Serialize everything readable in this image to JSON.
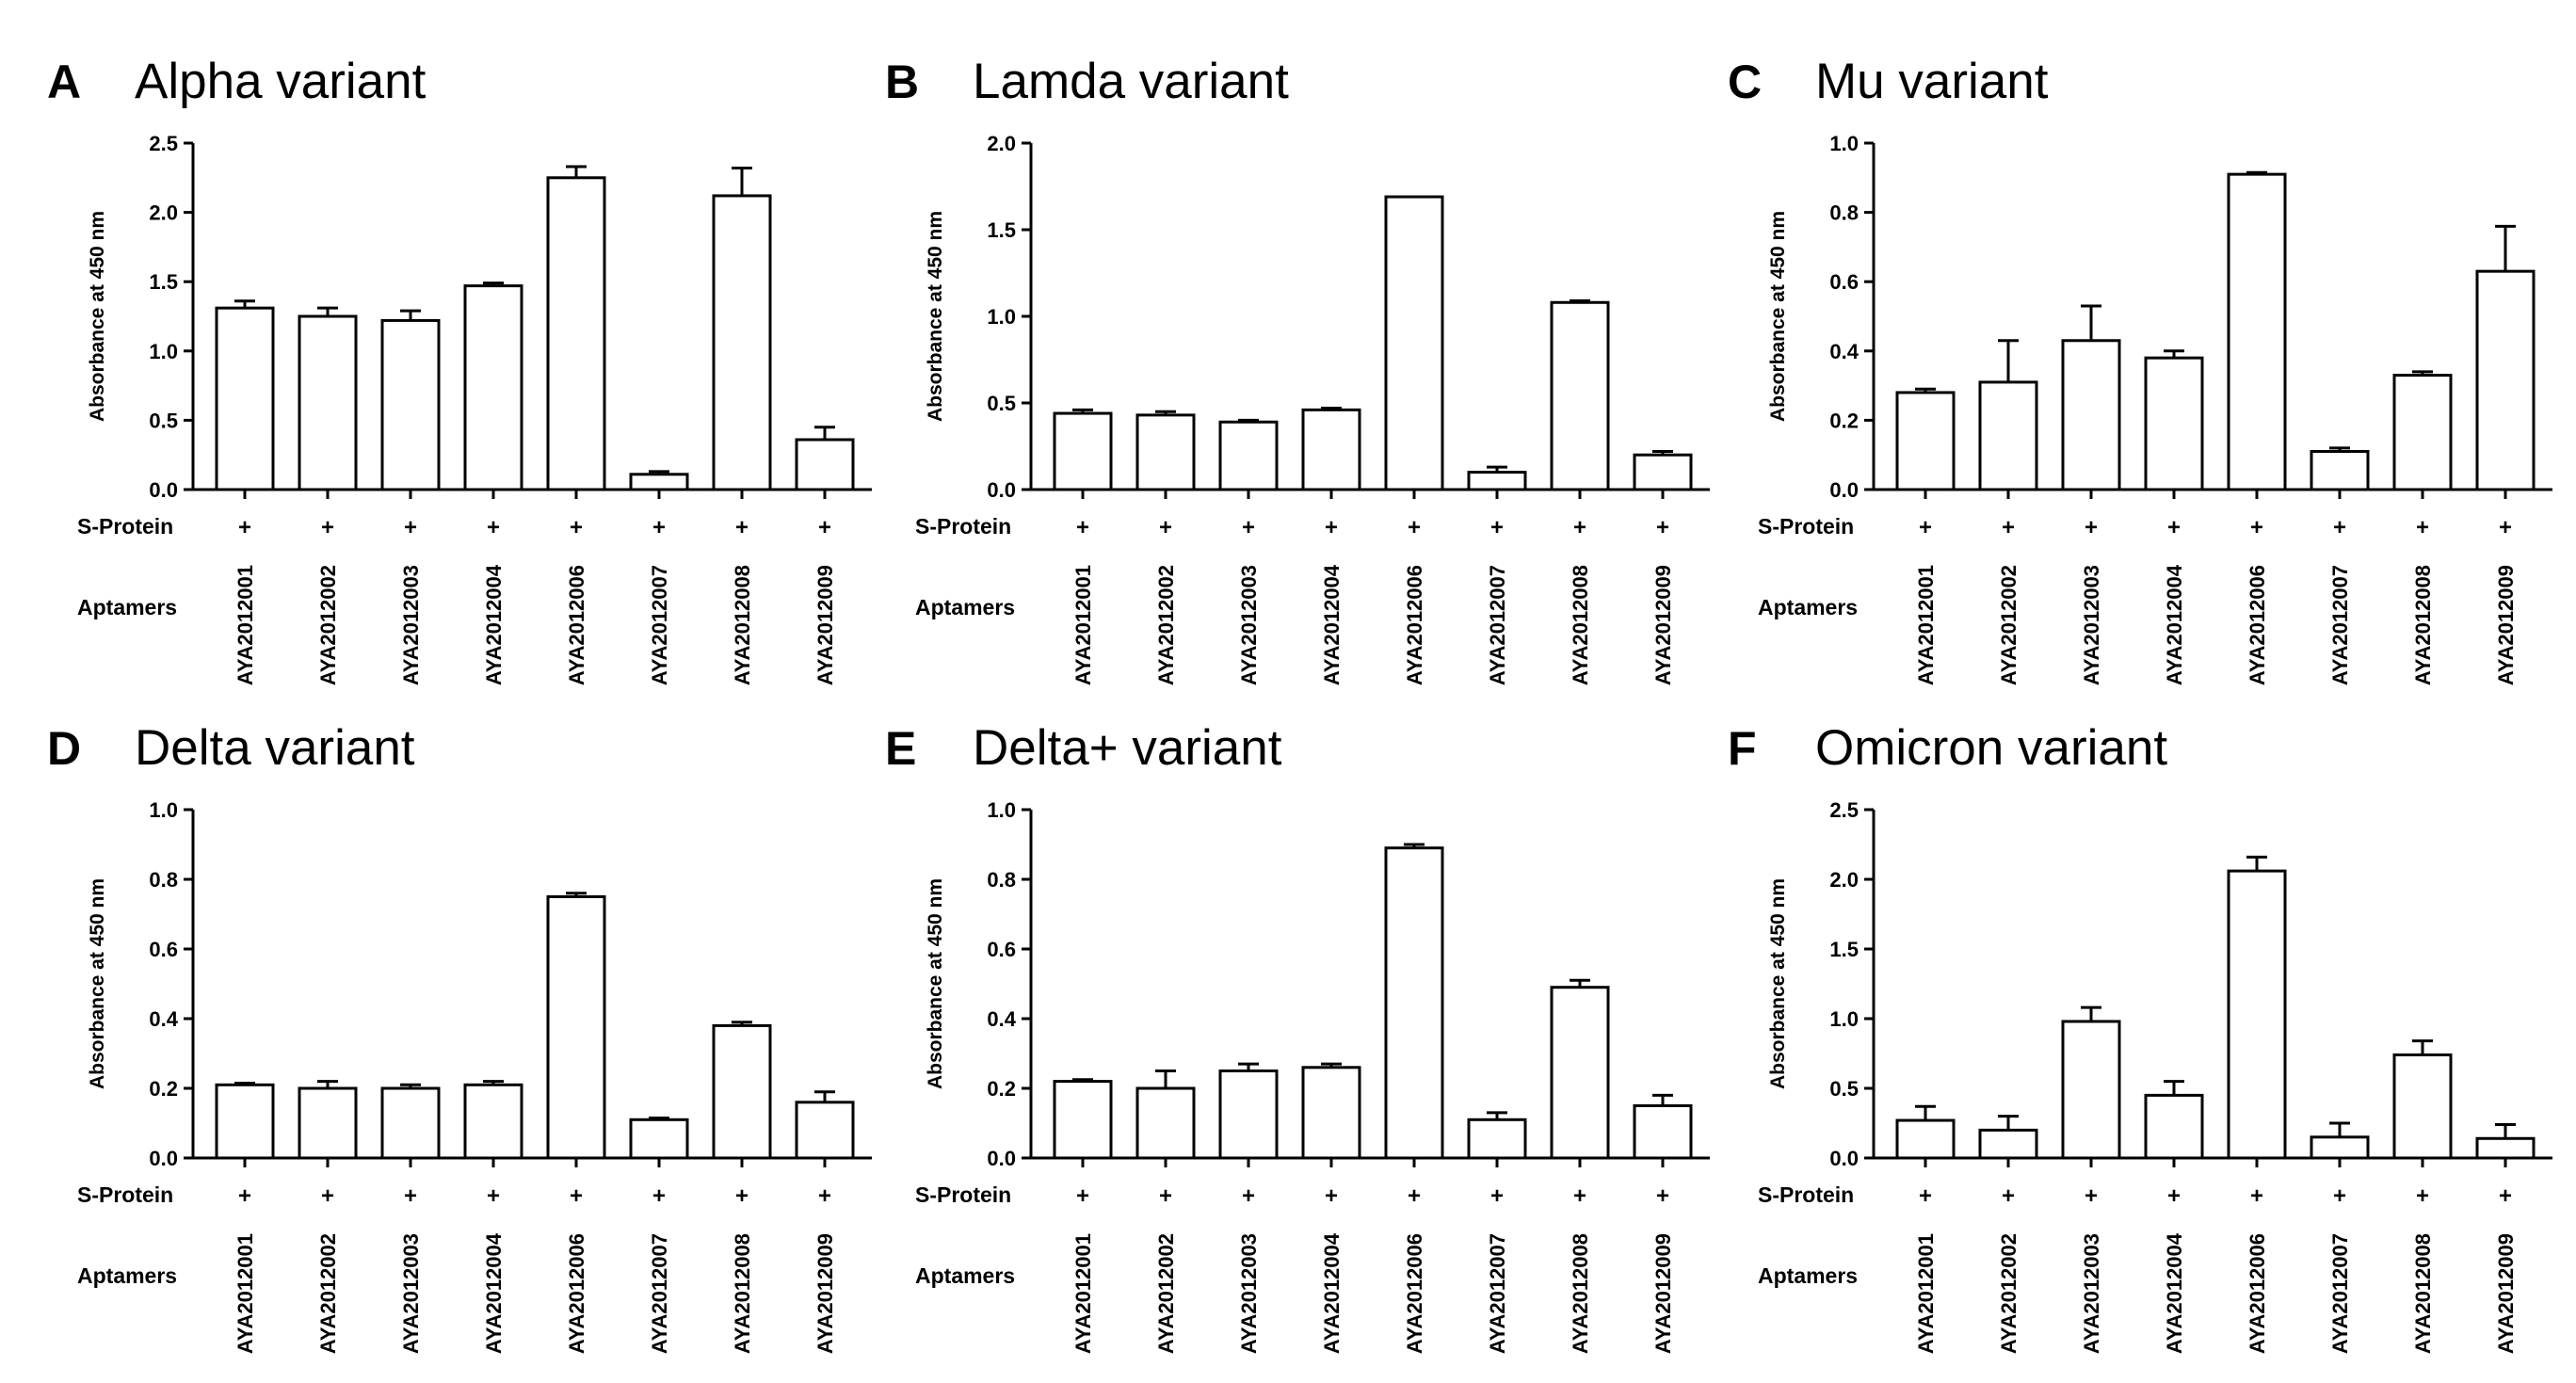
{
  "chart_data": [
    {
      "type": "bar",
      "panel": "A",
      "title": "Alpha variant",
      "ylabel": "Absorbance at 450 nm",
      "ylim": [
        0,
        2.5
      ],
      "yticks": [
        "0.0",
        "0.5",
        "1.0",
        "1.5",
        "2.0",
        "2.5"
      ],
      "row_labels": [
        "S-Protein",
        "Aptamers"
      ],
      "categories": [
        "AYA2012001",
        "AYA2012002",
        "AYA2012003",
        "AYA2012004",
        "AYA2012006",
        "AYA2012007",
        "AYA2012008",
        "AYA2012009"
      ],
      "s_protein": [
        "+",
        "+",
        "+",
        "+",
        "+",
        "+",
        "+",
        "+"
      ],
      "values": [
        1.31,
        1.25,
        1.22,
        1.47,
        2.25,
        0.11,
        2.12,
        0.36
      ],
      "errors": [
        0.05,
        0.06,
        0.07,
        0.02,
        0.08,
        0.02,
        0.2,
        0.09
      ]
    },
    {
      "type": "bar",
      "panel": "B",
      "title": "Lamda variant",
      "ylabel": "Absorbance at 450 nm",
      "ylim": [
        0,
        2.0
      ],
      "yticks": [
        "0.0",
        "0.5",
        "1.0",
        "1.5",
        "2.0"
      ],
      "row_labels": [
        "S-Protein",
        "Aptamers"
      ],
      "categories": [
        "AYA2012001",
        "AYA2012002",
        "AYA2012003",
        "AYA2012004",
        "AYA2012006",
        "AYA2012007",
        "AYA2012008",
        "AYA2012009"
      ],
      "s_protein": [
        "+",
        "+",
        "+",
        "+",
        "+",
        "+",
        "+",
        "+"
      ],
      "values": [
        0.44,
        0.43,
        0.39,
        0.46,
        1.69,
        0.1,
        1.08,
        0.2
      ],
      "errors": [
        0.02,
        0.02,
        0.01,
        0.01,
        0.0,
        0.03,
        0.01,
        0.02
      ]
    },
    {
      "type": "bar",
      "panel": "C",
      "title": "Mu variant",
      "ylabel": "Absorbance at 450 nm",
      "ylim": [
        0,
        1.0
      ],
      "yticks": [
        "0.0",
        "0.2",
        "0.4",
        "0.6",
        "0.8",
        "1.0"
      ],
      "row_labels": [
        "S-Protein",
        "Aptamers"
      ],
      "categories": [
        "AYA2012001",
        "AYA2012002",
        "AYA2012003",
        "AYA2012004",
        "AYA2012006",
        "AYA2012007",
        "AYA2012008",
        "AYA2012009"
      ],
      "s_protein": [
        "+",
        "+",
        "+",
        "+",
        "+",
        "+",
        "+",
        "+"
      ],
      "values": [
        0.28,
        0.31,
        0.43,
        0.38,
        0.91,
        0.11,
        0.33,
        0.63
      ],
      "errors": [
        0.01,
        0.12,
        0.1,
        0.02,
        0.005,
        0.01,
        0.01,
        0.13
      ]
    },
    {
      "type": "bar",
      "panel": "D",
      "title": "Delta variant",
      "ylabel": "Absorbance at 450 nm",
      "ylim": [
        0,
        1.0
      ],
      "yticks": [
        "0.0",
        "0.2",
        "0.4",
        "0.6",
        "0.8",
        "1.0"
      ],
      "row_labels": [
        "S-Protein",
        "Aptamers"
      ],
      "categories": [
        "AYA2012001",
        "AYA2012002",
        "AYA2012003",
        "AYA2012004",
        "AYA2012006",
        "AYA2012007",
        "AYA2012008",
        "AYA2012009"
      ],
      "s_protein": [
        "+",
        "+",
        "+",
        "+",
        "+",
        "+",
        "+",
        "+"
      ],
      "values": [
        0.21,
        0.2,
        0.2,
        0.21,
        0.75,
        0.11,
        0.38,
        0.16
      ],
      "errors": [
        0.005,
        0.02,
        0.01,
        0.01,
        0.01,
        0.005,
        0.01,
        0.03
      ]
    },
    {
      "type": "bar",
      "panel": "E",
      "title": "Delta+ variant",
      "ylabel": "Absorbance at 450 nm",
      "ylim": [
        0,
        1.0
      ],
      "yticks": [
        "0.0",
        "0.2",
        "0.4",
        "0.6",
        "0.8",
        "1.0"
      ],
      "row_labels": [
        "S-Protein",
        "Aptamers"
      ],
      "categories": [
        "AYA2012001",
        "AYA2012002",
        "AYA2012003",
        "AYA2012004",
        "AYA2012006",
        "AYA2012007",
        "AYA2012008",
        "AYA2012009"
      ],
      "s_protein": [
        "+",
        "+",
        "+",
        "+",
        "+",
        "+",
        "+",
        "+"
      ],
      "values": [
        0.22,
        0.2,
        0.25,
        0.26,
        0.89,
        0.11,
        0.49,
        0.15
      ],
      "errors": [
        0.005,
        0.05,
        0.02,
        0.01,
        0.01,
        0.02,
        0.02,
        0.03
      ]
    },
    {
      "type": "bar",
      "panel": "F",
      "title": "Omicron variant",
      "ylabel": "Absorbance at 450 nm",
      "ylim": [
        0,
        2.5
      ],
      "yticks": [
        "0.0",
        "0.5",
        "1.0",
        "1.5",
        "2.0",
        "2.5"
      ],
      "row_labels": [
        "S-Protein",
        "Aptamers"
      ],
      "categories": [
        "AYA2012001",
        "AYA2012002",
        "AYA2012003",
        "AYA2012004",
        "AYA2012006",
        "AYA2012007",
        "AYA2012008",
        "AYA2012009"
      ],
      "s_protein": [
        "+",
        "+",
        "+",
        "+",
        "+",
        "+",
        "+",
        "+"
      ],
      "values": [
        0.27,
        0.2,
        0.98,
        0.45,
        2.06,
        0.15,
        0.74,
        0.14
      ],
      "errors": [
        0.1,
        0.1,
        0.1,
        0.1,
        0.1,
        0.1,
        0.1,
        0.1
      ]
    }
  ],
  "colors": {
    "bar_fill": "#ffffff",
    "stroke": "#000000",
    "text": "#000000"
  }
}
